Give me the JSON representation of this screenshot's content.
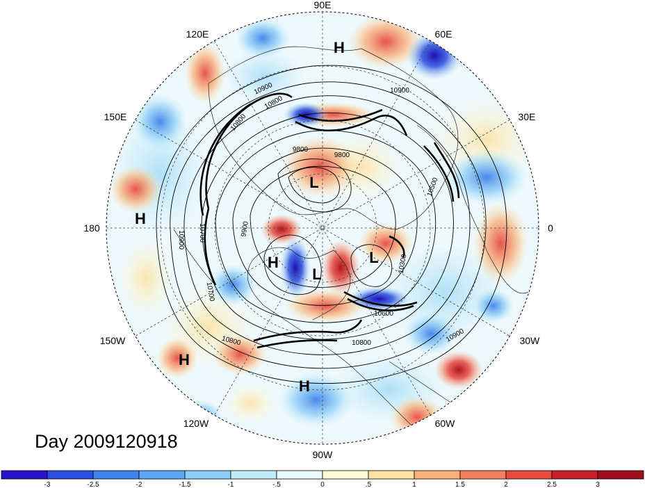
{
  "longitude_labels": [
    "90E",
    "60E",
    "30E",
    "0",
    "30W",
    "60W",
    "90W",
    "120W",
    "150W",
    "180",
    "150E",
    "120E"
  ],
  "pressure_centers": [
    "H",
    "H",
    "L",
    "H",
    "L",
    "L",
    "H",
    "H"
  ],
  "contour_labels": [
    "10900",
    "10900",
    "10800",
    "10800",
    "9800",
    "9800",
    "9900",
    "10700",
    "10700",
    "10900",
    "10500",
    "10300",
    "10600",
    "10800",
    "10800",
    "10900"
  ],
  "timestamp": "Day 2009120918",
  "colorbar": {
    "ticks": [
      "-3",
      "-2.5",
      "-2",
      "-1.5",
      "-1",
      "-.5",
      "0",
      ".5",
      "1",
      "1.5",
      "2",
      "2.5",
      "3"
    ],
    "colors": [
      "#2a12c8",
      "#2a4fe0",
      "#3f82ea",
      "#5fa6f0",
      "#8ccdf5",
      "#c2ebfa",
      "#eafbff",
      "#fffbd8",
      "#fde2a3",
      "#f8b07a",
      "#f0805e",
      "#e64a40",
      "#c91f2a",
      "#9e0e1e"
    ]
  }
}
